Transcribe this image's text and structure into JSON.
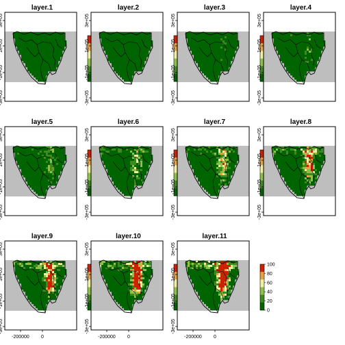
{
  "chart_data": {
    "type": "heatmap",
    "panels": [
      {
        "title": "layer.1",
        "hot": 0.0
      },
      {
        "title": "layer.2",
        "hot": 0.08
      },
      {
        "title": "layer.3",
        "hot": 0.16
      },
      {
        "title": "layer.4",
        "hot": 0.24
      },
      {
        "title": "layer.5",
        "hot": 0.34
      },
      {
        "title": "layer.6",
        "hot": 0.42
      },
      {
        "title": "layer.7",
        "hot": 0.52
      },
      {
        "title": "layer.8",
        "hot": 0.62
      },
      {
        "title": "layer.9",
        "hot": 0.72
      },
      {
        "title": "layer.10",
        "hot": 0.82
      },
      {
        "title": "layer.11",
        "hot": 0.92
      }
    ],
    "legend": {
      "range": [
        0,
        100
      ],
      "ticks": [
        "100",
        "80",
        "60",
        "40",
        "20",
        "0"
      ],
      "colors": [
        "#006400",
        "#3e8a1e",
        "#8ec14a",
        "#f0eea0",
        "#e8a040",
        "#cc2200"
      ]
    },
    "y_ticks": [
      "3e+05",
      "1e+05",
      "-1e+05",
      "-3e+05"
    ],
    "x_ticks": [
      "-200000",
      "0"
    ],
    "background_color": "#bebebe",
    "boundary_color": "#000000"
  }
}
